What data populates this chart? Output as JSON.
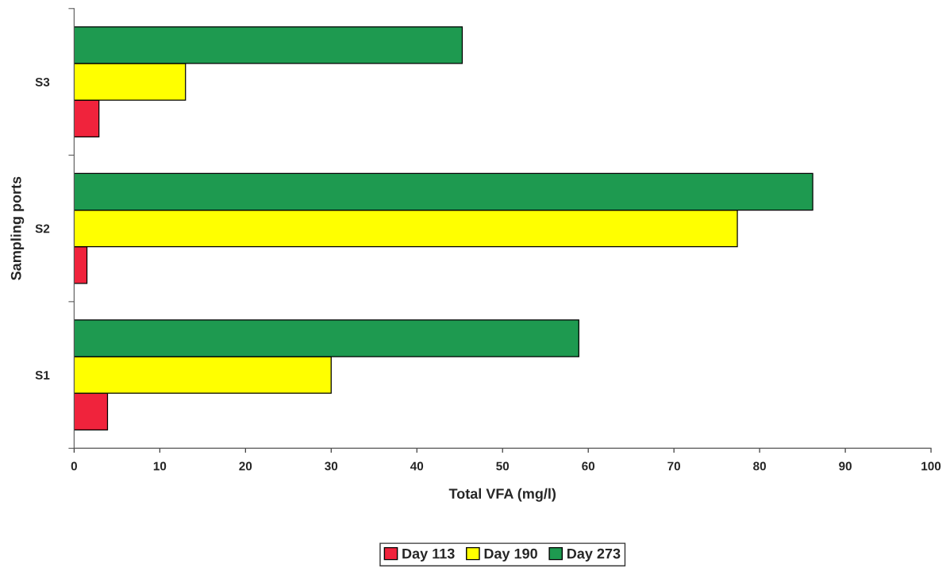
{
  "chart_data": {
    "type": "bar",
    "orientation": "horizontal",
    "xlabel": "Total VFA (mg/l)",
    "ylabel": "Sampling ports",
    "categories": [
      "S3",
      "S2",
      "S1"
    ],
    "series": [
      {
        "name": "Day 113",
        "color": "#f0233c",
        "values": [
          2.9,
          1.5,
          3.9
        ]
      },
      {
        "name": "Day 190",
        "color": "#ffff00",
        "values": [
          13.0,
          77.4,
          30.0
        ]
      },
      {
        "name": "Day 273",
        "color": "#1e9a50",
        "values": [
          45.3,
          86.2,
          58.9
        ]
      }
    ],
    "xlim": [
      0,
      100
    ],
    "xticks": [
      0,
      10,
      20,
      30,
      40,
      50,
      60,
      70,
      80,
      90,
      100
    ],
    "grid": false,
    "legend": "bottom"
  }
}
